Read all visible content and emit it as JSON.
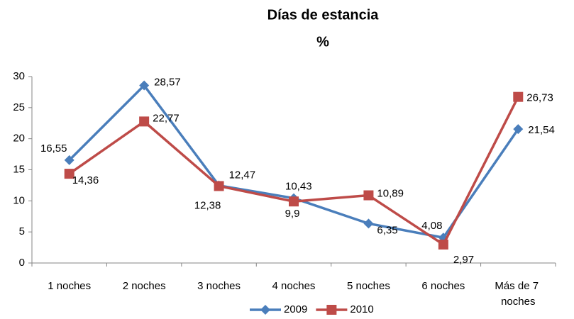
{
  "chart_data": {
    "type": "line",
    "title": "Días de estancia",
    "subtitle": "%",
    "categories": [
      "1 noches",
      "2 noches",
      "3 noches",
      "4 noches",
      "5 noches",
      "6 noches",
      "Más de 7 noches"
    ],
    "series": [
      {
        "name": "2009",
        "color": "#4a7ebb",
        "marker": "diamond",
        "values": [
          16.55,
          28.57,
          12.47,
          10.43,
          6.35,
          4.08,
          21.54
        ],
        "value_labels": [
          "16,55",
          "28,57",
          "12,47",
          "10,43",
          "6,35",
          "4,08",
          "21,54"
        ]
      },
      {
        "name": "2010",
        "color": "#be4b48",
        "marker": "square",
        "values": [
          14.36,
          22.77,
          12.38,
          9.9,
          10.89,
          2.97,
          26.73
        ],
        "value_labels": [
          "14,36",
          "22,77",
          "12,38",
          "9,9",
          "10,89",
          "2,97",
          "26,73"
        ]
      }
    ],
    "ylim": [
      0,
      30
    ],
    "yticks": [
      0,
      5,
      10,
      15,
      20,
      25,
      30
    ],
    "grid": false,
    "legend": "bottom"
  }
}
